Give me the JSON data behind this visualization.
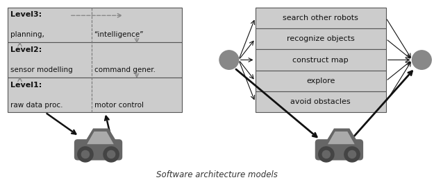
{
  "fig_bg": "#ffffff",
  "caption": "Software architecture models",
  "left_rows": [
    {
      "label": "Level3:",
      "left": "planning,",
      "right": "“intelligence”"
    },
    {
      "label": "Level2:",
      "left": "sensor modelling",
      "right": "command gener."
    },
    {
      "label": "Level1:",
      "left": "raw data proc.",
      "right": "motor control"
    }
  ],
  "right_rows": [
    "search other robots",
    "recognize objects",
    "construct map",
    "explore",
    "avoid obstacles"
  ],
  "cell_bg": "#cccccc",
  "text_color": "#111111",
  "node_color": "#888888",
  "car_color": "#666666",
  "car_wheel_color": "#444444",
  "car_window_color": "#aaaaaa",
  "arrow_dark": "#111111",
  "arrow_gray": "#888888"
}
